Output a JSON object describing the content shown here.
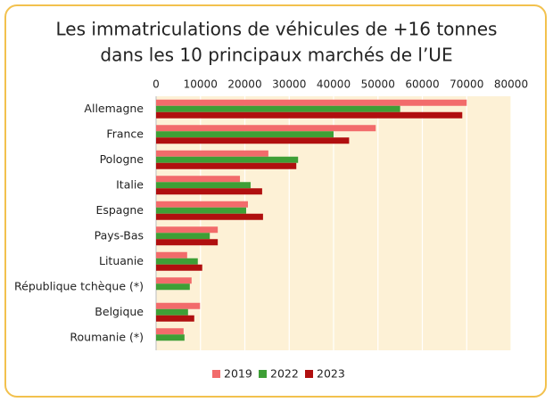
{
  "chart_data": {
    "type": "hbar",
    "title": [
      "Les immatriculations de véhicules de +16 tonnes",
      "dans les 10 principaux marchés de l’UE"
    ],
    "categories": [
      "Allemagne",
      "France",
      "Pologne",
      "Italie",
      "Espagne",
      "Pays-Bas",
      "Lituanie",
      "République tchèque (*)",
      "Belgique",
      "Roumanie (*)"
    ],
    "series": [
      {
        "name": "2019",
        "color": "#f26b6b",
        "values": [
          70000,
          49500,
          25300,
          18900,
          20700,
          13900,
          7000,
          8000,
          9900,
          6200
        ]
      },
      {
        "name": "2022",
        "color": "#3e9f36",
        "values": [
          55000,
          40000,
          32000,
          21300,
          20300,
          12100,
          9400,
          7600,
          7200,
          6400
        ]
      },
      {
        "name": "2023",
        "color": "#b00f0f",
        "values": [
          69000,
          43500,
          31600,
          23900,
          24100,
          13900,
          10400,
          null,
          8600,
          null
        ]
      }
    ],
    "xlim": [
      0,
      80000
    ],
    "xticks": [
      0,
      10000,
      20000,
      30000,
      40000,
      50000,
      60000,
      70000,
      80000
    ],
    "grid": true,
    "plot_background": "#fdf1d6",
    "legend": "bottom"
  }
}
